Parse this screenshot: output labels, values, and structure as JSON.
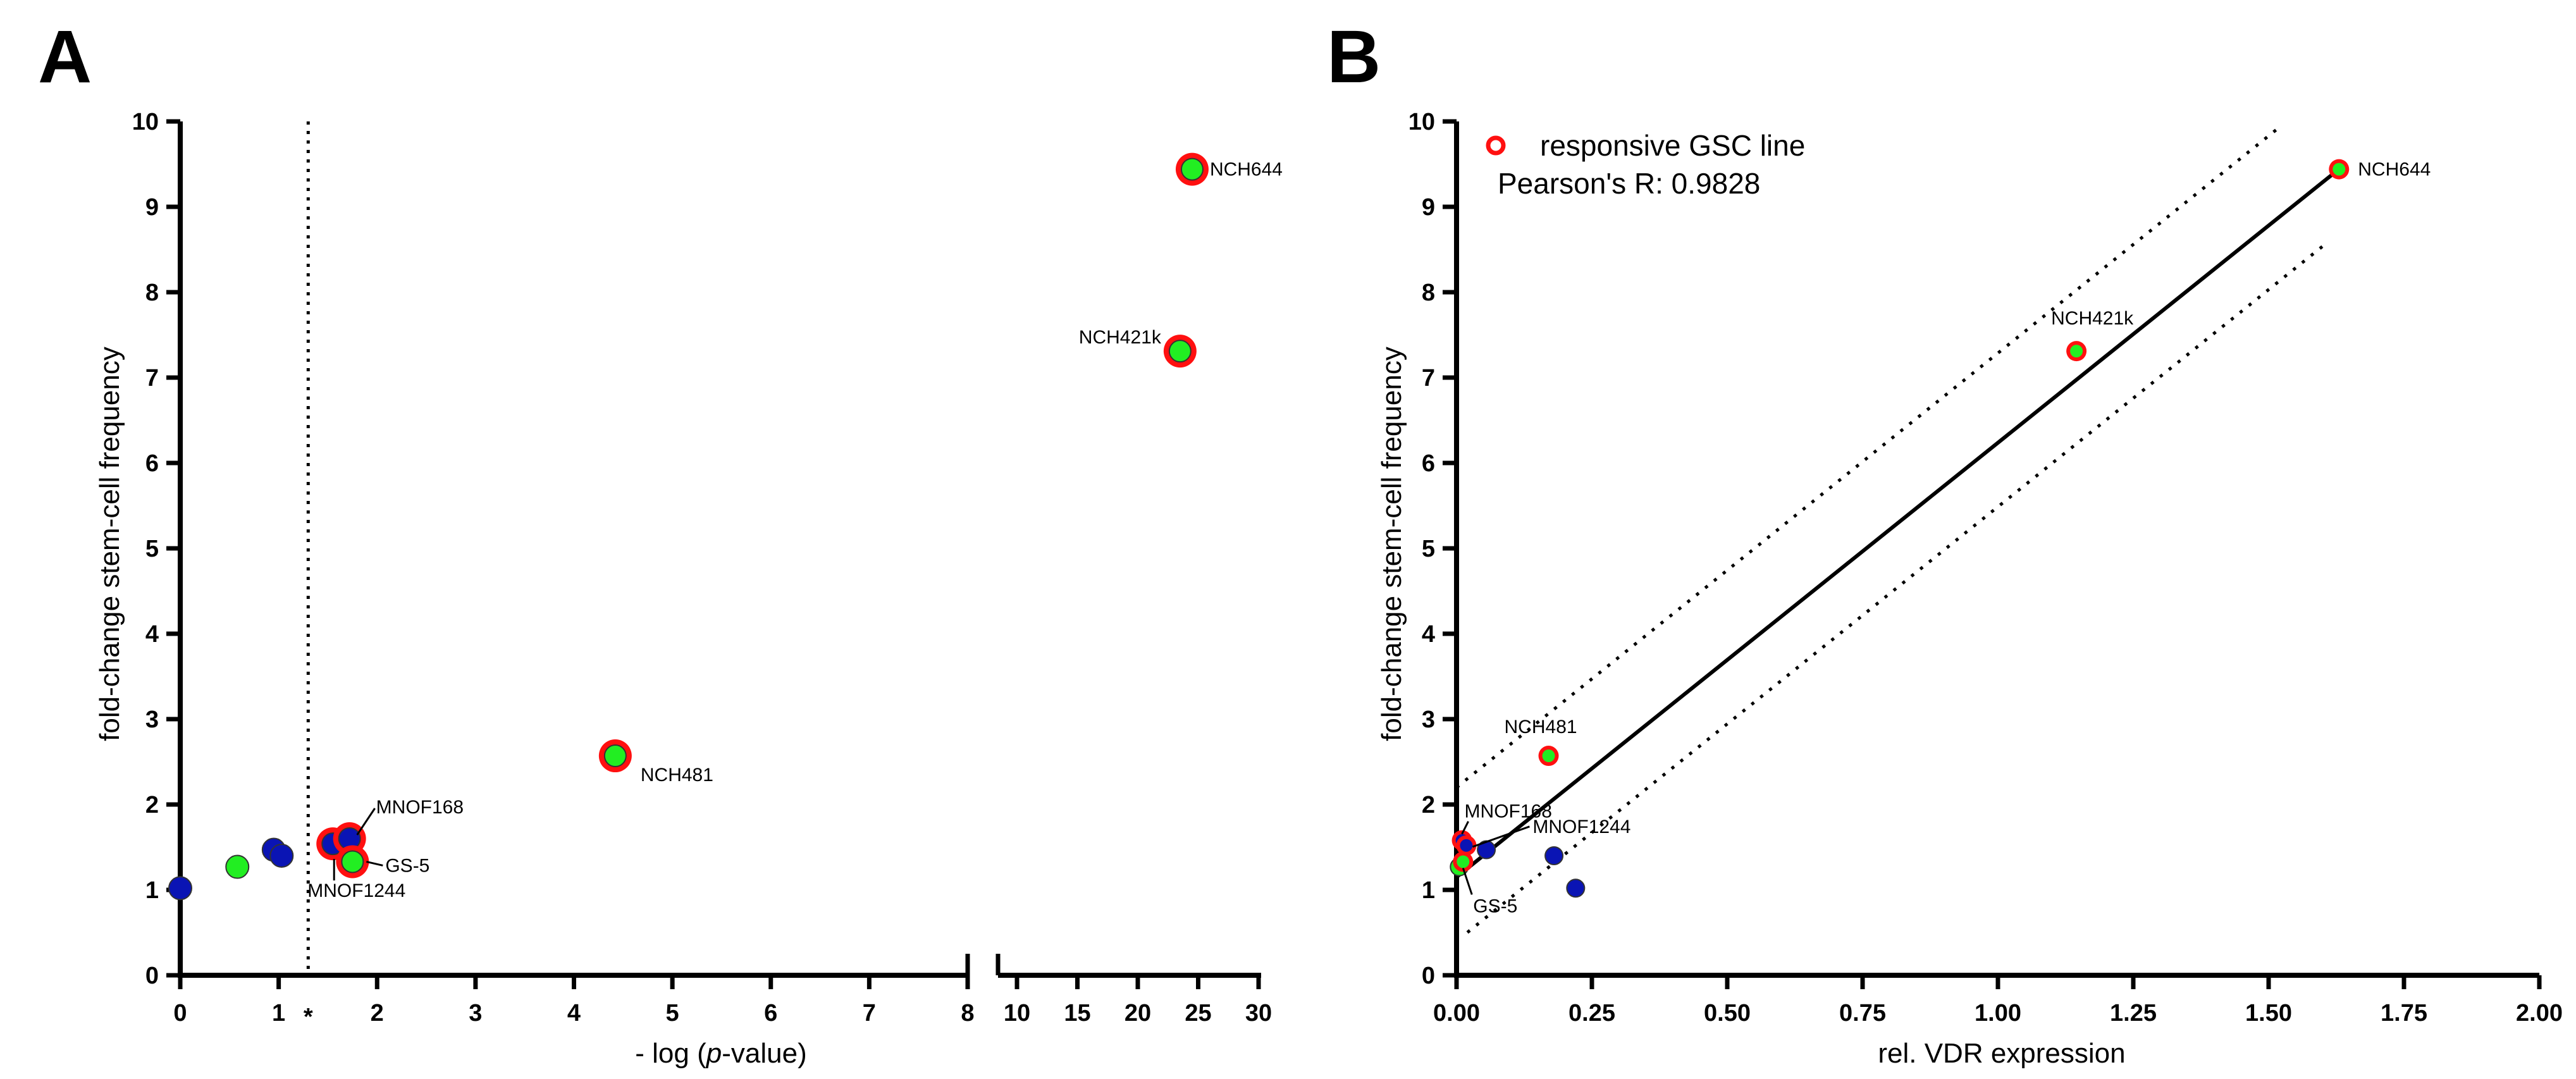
{
  "colors": {
    "responsive_ring": "#ff1010",
    "green_point": "#22ee22",
    "blue_point": "#0a14b4",
    "axis": "#000000"
  },
  "chart_data": [
    {
      "panel": "A",
      "type": "scatter",
      "xlabel_prefix": "- log (",
      "xlabel_italic": "p",
      "xlabel_suffix": "-value)",
      "ylabel": "fold-change stem-cell frequency",
      "ylim": [
        0,
        10
      ],
      "y_ticks": [
        "0",
        "1",
        "2",
        "3",
        "4",
        "5",
        "6",
        "7",
        "8",
        "9",
        "10"
      ],
      "x_segments": [
        {
          "xlim": [
            0,
            8
          ],
          "ticks": [
            "0",
            "1",
            "2",
            "3",
            "4",
            "5",
            "6",
            "7",
            "8"
          ]
        },
        {
          "xlim": [
            8,
            30
          ],
          "ticks": [
            "10",
            "15",
            "20",
            "25",
            "30"
          ]
        }
      ],
      "significance_threshold": 1.3,
      "threshold_marker": "*",
      "points": [
        {
          "name": "",
          "x": 0.0,
          "y": 1.02,
          "color": "blue",
          "responsive": false
        },
        {
          "name": "",
          "x": 0.58,
          "y": 1.27,
          "color": "green",
          "responsive": false
        },
        {
          "name": "",
          "x": 0.95,
          "y": 1.47,
          "color": "blue",
          "responsive": false
        },
        {
          "name": "",
          "x": 1.03,
          "y": 1.4,
          "color": "blue",
          "responsive": false
        },
        {
          "name": "MNOF1244",
          "x": 1.55,
          "y": 1.54,
          "color": "blue",
          "responsive": true
        },
        {
          "name": "MNOF168",
          "x": 1.72,
          "y": 1.6,
          "color": "blue",
          "responsive": true
        },
        {
          "name": "GS-5",
          "x": 1.75,
          "y": 1.33,
          "color": "green",
          "responsive": true
        },
        {
          "name": "NCH481",
          "x": 4.42,
          "y": 2.57,
          "color": "green",
          "responsive": true
        },
        {
          "name": "NCH421k",
          "x": 23.5,
          "y": 7.31,
          "color": "green",
          "responsive": true
        },
        {
          "name": "NCH644",
          "x": 24.5,
          "y": 9.44,
          "color": "green",
          "responsive": true
        }
      ]
    },
    {
      "panel": "B",
      "type": "scatter",
      "xlabel": "rel. VDR expression",
      "ylabel": "fold-change stem-cell frequency",
      "xlim": [
        0,
        2
      ],
      "ylim": [
        0,
        10
      ],
      "x_ticks": [
        "0.00",
        "0.25",
        "0.50",
        "0.75",
        "1.00",
        "1.25",
        "1.50",
        "1.75",
        "2.00"
      ],
      "y_ticks": [
        "0",
        "1",
        "2",
        "3",
        "4",
        "5",
        "6",
        "7",
        "8",
        "9",
        "10"
      ],
      "legend_label": "responsive GSC line",
      "stat_text": "Pearson's R: 0.9828",
      "regression": {
        "x0": 0.0,
        "x1": 1.63,
        "slope": 5.087,
        "intercept": 1.15
      },
      "confidence_band": {
        "upper_offset": 1.05,
        "lower_offset": -0.75,
        "x0": 0.0,
        "x1": 1.6
      },
      "points": [
        {
          "name": "",
          "x": 0.055,
          "y": 1.47,
          "color": "blue",
          "responsive": false
        },
        {
          "name": "",
          "x": 0.18,
          "y": 1.4,
          "color": "blue",
          "responsive": false
        },
        {
          "name": "",
          "x": 0.22,
          "y": 1.02,
          "color": "blue",
          "responsive": false
        },
        {
          "name": "",
          "x": 0.005,
          "y": 1.27,
          "color": "green",
          "responsive": false
        },
        {
          "name": "MNOF168",
          "x": 0.01,
          "y": 1.58,
          "color": "blue",
          "responsive": true
        },
        {
          "name": "MNOF1244",
          "x": 0.018,
          "y": 1.52,
          "color": "blue",
          "responsive": true
        },
        {
          "name": "GS-5",
          "x": 0.012,
          "y": 1.33,
          "color": "green",
          "responsive": true
        },
        {
          "name": "NCH481",
          "x": 0.17,
          "y": 2.57,
          "color": "green",
          "responsive": true
        },
        {
          "name": "NCH421k",
          "x": 1.145,
          "y": 7.31,
          "color": "green",
          "responsive": true
        },
        {
          "name": "NCH644",
          "x": 1.63,
          "y": 9.44,
          "color": "green",
          "responsive": true
        }
      ]
    }
  ]
}
